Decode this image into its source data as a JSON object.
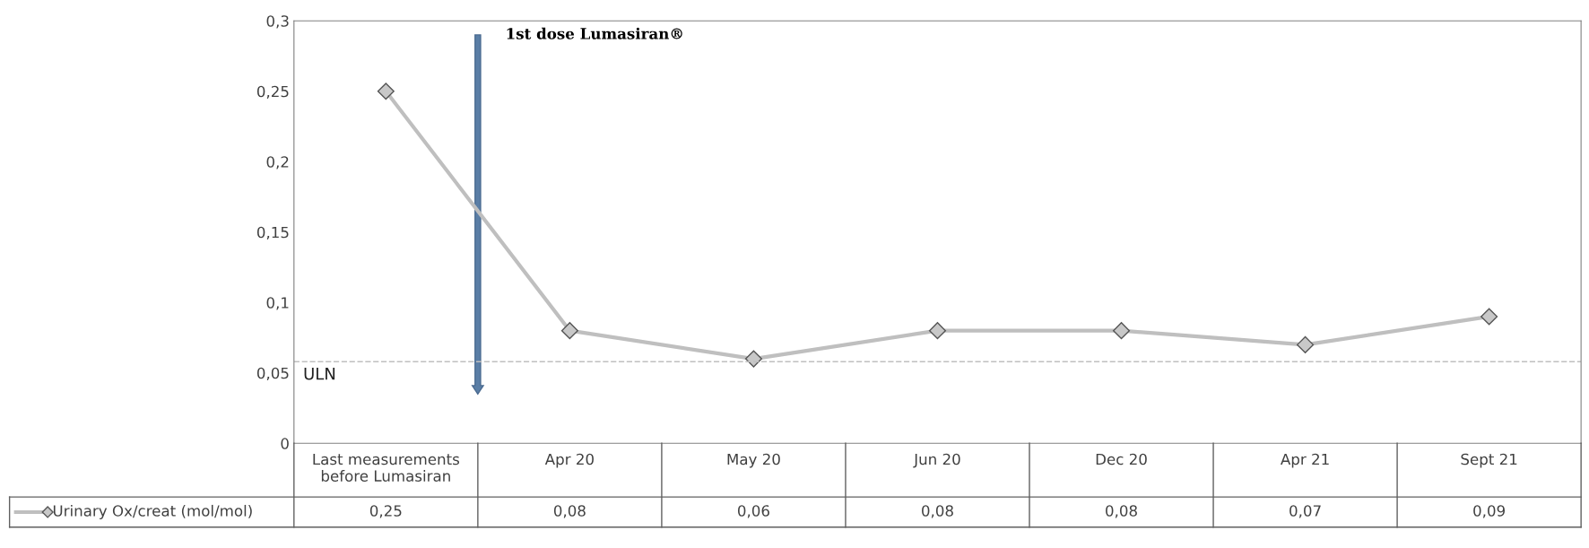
{
  "chart_data": {
    "type": "line",
    "categories": [
      "Last measurements\nbefore Lumasiran",
      "Apr 20",
      "May 20",
      "Jun 20",
      "Dec 20",
      "Apr 21",
      "Sept 21"
    ],
    "series": [
      {
        "name": "Urinary Ox/creat (mol/mol)",
        "color": "#bfbfbf",
        "values": [
          0.25,
          0.08,
          0.06,
          0.08,
          0.08,
          0.07,
          0.09
        ],
        "value_labels": [
          "0,25",
          "0,08",
          "0,06",
          "0,08",
          "0,08",
          "0,07",
          "0,09"
        ]
      }
    ],
    "ylim": [
      0,
      0.3
    ],
    "yticks": [
      {
        "value": 0,
        "label": "0"
      },
      {
        "value": 0.05,
        "label": "0,05"
      },
      {
        "value": 0.1,
        "label": "0,1"
      },
      {
        "value": 0.15,
        "label": "0,15"
      },
      {
        "value": 0.2,
        "label": "0,2"
      },
      {
        "value": 0.25,
        "label": "0,25"
      },
      {
        "value": 0.3,
        "label": "0,3"
      }
    ],
    "ref_lines": [
      {
        "axis": "y",
        "value": 0.058,
        "label": "ULN",
        "color": "#bfbfbf",
        "line_style": "dashed"
      }
    ],
    "annotations": [
      "1st dose Lumasiran®"
    ],
    "marker": "diamond",
    "grid": false,
    "legend": "bottom"
  }
}
